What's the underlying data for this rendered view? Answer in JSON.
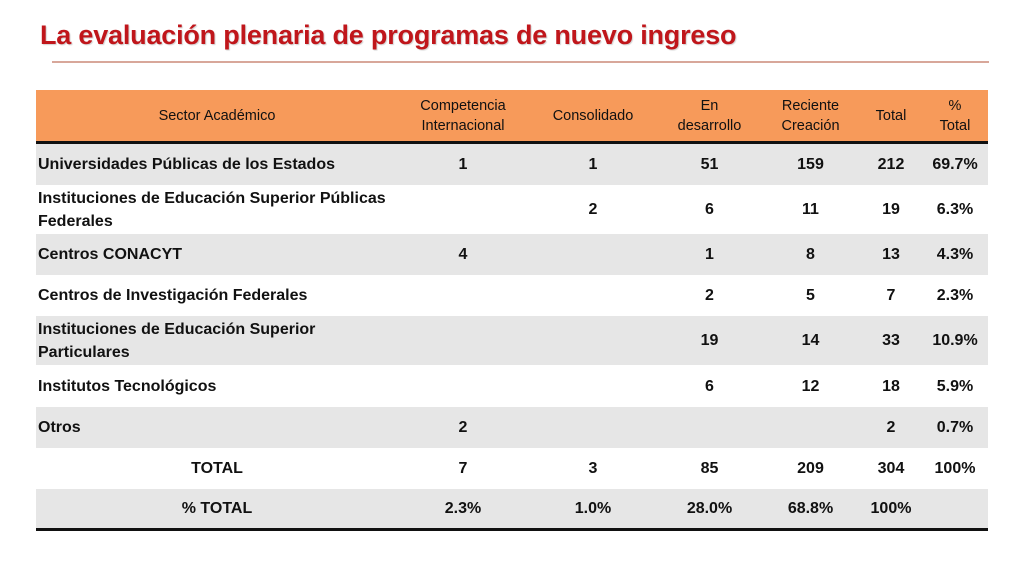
{
  "slide": {
    "title": "La evaluación plenaria de programas de nuevo ingreso"
  },
  "colors": {
    "title": "#c0161b",
    "header_bg": "#f79a5a",
    "row_gray": "#e6e6e6",
    "rule": "#d8a79a"
  },
  "table": {
    "headers": {
      "sector": "Sector Académico",
      "competencia_1": "Competencia",
      "competencia_2": "Internacional",
      "consolidado": "Consolidado",
      "en_desarrollo_1": "En",
      "en_desarrollo_2": "desarrollo",
      "reciente_1": "Reciente",
      "reciente_2": "Creación",
      "total": "Total",
      "pct_1": "%",
      "pct_2": "Total"
    },
    "rows": [
      {
        "sector": "Universidades Públicas de los Estados",
        "competencia": "1",
        "consolidado": "1",
        "desarrollo": "51",
        "reciente": "159",
        "total": "212",
        "pct": "69.7%"
      },
      {
        "sector": "Instituciones de Educación Superior Públicas Federales",
        "competencia": "",
        "consolidado": "2",
        "desarrollo": "6",
        "reciente": "11",
        "total": "19",
        "pct": "6.3%"
      },
      {
        "sector": "Centros CONACYT",
        "competencia": "4",
        "consolidado": "",
        "desarrollo": "1",
        "reciente": "8",
        "total": "13",
        "pct": "4.3%"
      },
      {
        "sector": "Centros de Investigación Federales",
        "competencia": "",
        "consolidado": "",
        "desarrollo": "2",
        "reciente": "5",
        "total": "7",
        "pct": "2.3%"
      },
      {
        "sector": "Instituciones de Educación Superior Particulares",
        "competencia": "",
        "consolidado": "",
        "desarrollo": "19",
        "reciente": "14",
        "total": "33",
        "pct": "10.9%"
      },
      {
        "sector": "Institutos Tecnológicos",
        "competencia": "",
        "consolidado": "",
        "desarrollo": "6",
        "reciente": "12",
        "total": "18",
        "pct": "5.9%"
      },
      {
        "sector": "Otros",
        "competencia": "2",
        "consolidado": "",
        "desarrollo": "",
        "reciente": "",
        "total": "2",
        "pct": "0.7%"
      },
      {
        "sector": "TOTAL",
        "competencia": "7",
        "consolidado": "3",
        "desarrollo": "85",
        "reciente": "209",
        "total": "304",
        "pct": "100%"
      },
      {
        "sector": "% TOTAL",
        "competencia": "2.3%",
        "consolidado": "1.0%",
        "desarrollo": "28.0%",
        "reciente": "68.8%",
        "total": "100%",
        "pct": ""
      }
    ]
  }
}
